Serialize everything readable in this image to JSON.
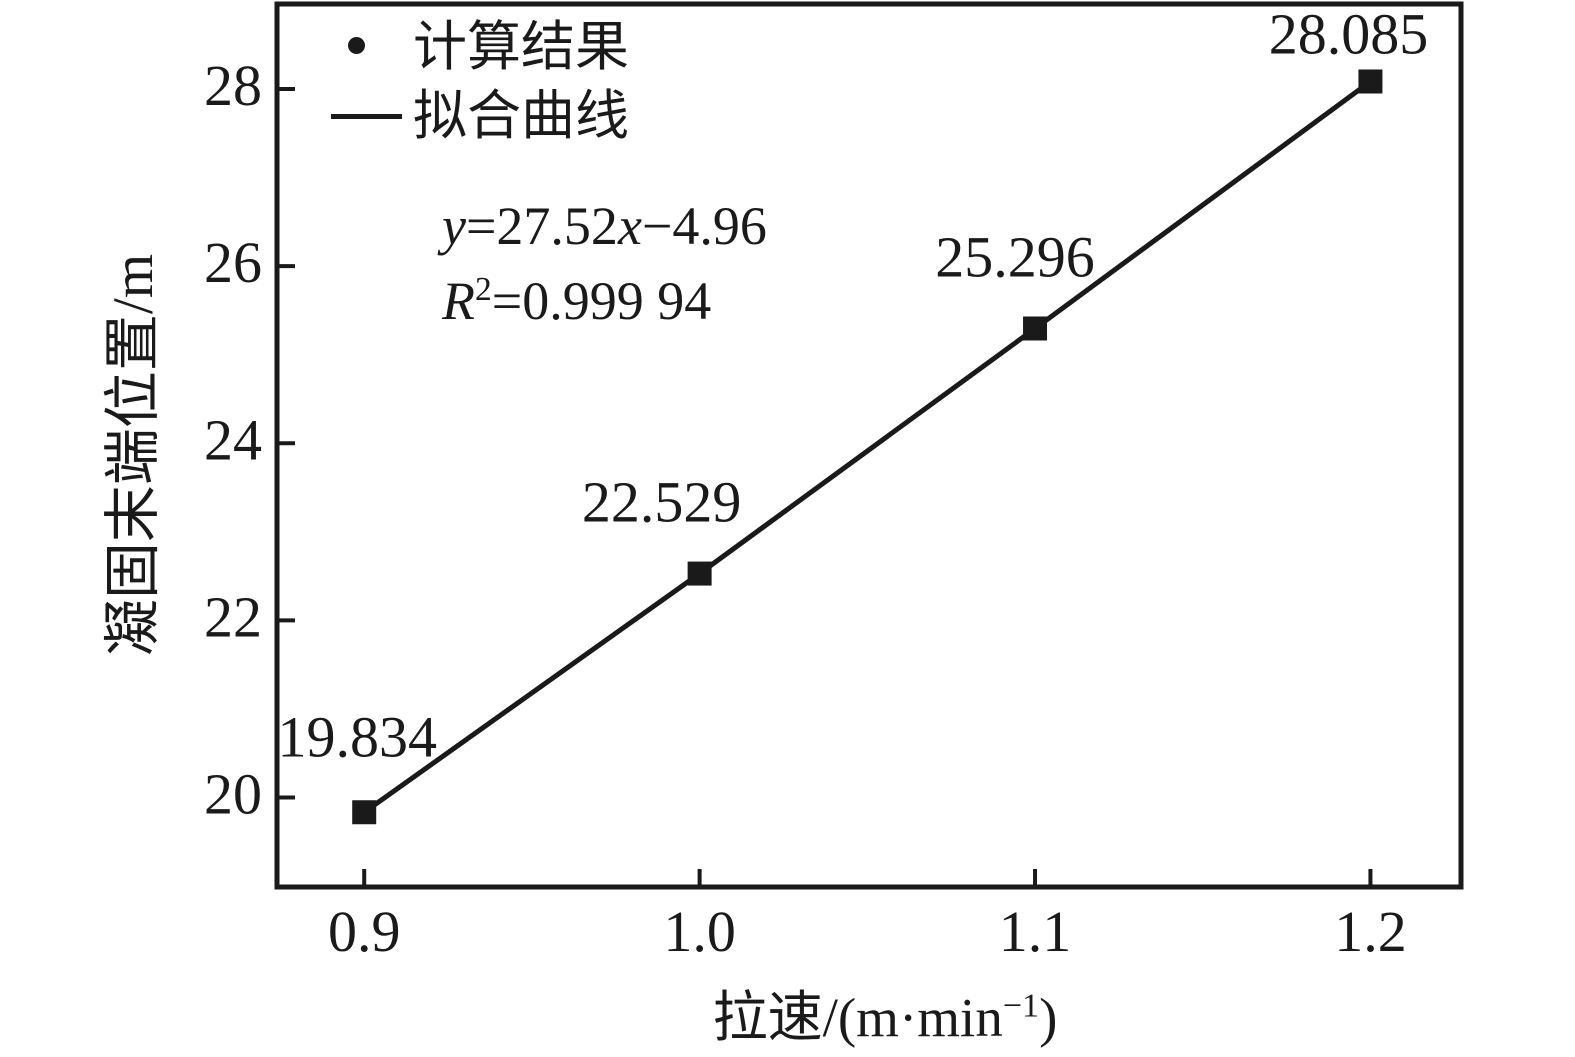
{
  "figure": {
    "background": "#ffffff",
    "ink_color": "#1a1a1a"
  },
  "chart_data": {
    "type": "scatter",
    "title": "",
    "xlabel": "拉速/(m·min−1)",
    "xlabel_parts": {
      "prefix": "拉速/(m·min",
      "superscript": "−1",
      "suffix": ")"
    },
    "ylabel": "凝固末端位置/m",
    "xlim": [
      0.874,
      1.227
    ],
    "ylim": [
      18.99,
      28.96
    ],
    "x_ticks": [
      0.9,
      1.0,
      1.1,
      1.2
    ],
    "x_tick_labels": [
      "0.9",
      "1.0",
      "1.1",
      "1.2"
    ],
    "y_ticks": [
      20,
      22,
      24,
      26,
      28
    ],
    "y_tick_labels": [
      "20",
      "22",
      "24",
      "26",
      "28"
    ],
    "grid": false,
    "legend_position": "upper-left-inside",
    "series": [
      {
        "name": "计算结果",
        "type": "scatter",
        "marker": "filled-square",
        "x": [
          0.9,
          1.0,
          1.1,
          1.2
        ],
        "y": [
          19.834,
          22.529,
          25.296,
          28.085
        ],
        "point_labels": [
          "19.834",
          "22.529",
          "25.296",
          "28.085"
        ]
      },
      {
        "name": "拟合曲线",
        "type": "line",
        "x": [
          0.9,
          1.0,
          1.1,
          1.2
        ],
        "y": [
          19.834,
          22.529,
          25.296,
          28.085
        ]
      }
    ]
  },
  "annotation": {
    "equation": {
      "y_var": "y",
      "mid": "=27.52",
      "x_var": "x",
      "tail": "−4.96"
    },
    "r_squared": {
      "r_var": "R",
      "exponent": "2",
      "value": "=0.999 94"
    }
  }
}
